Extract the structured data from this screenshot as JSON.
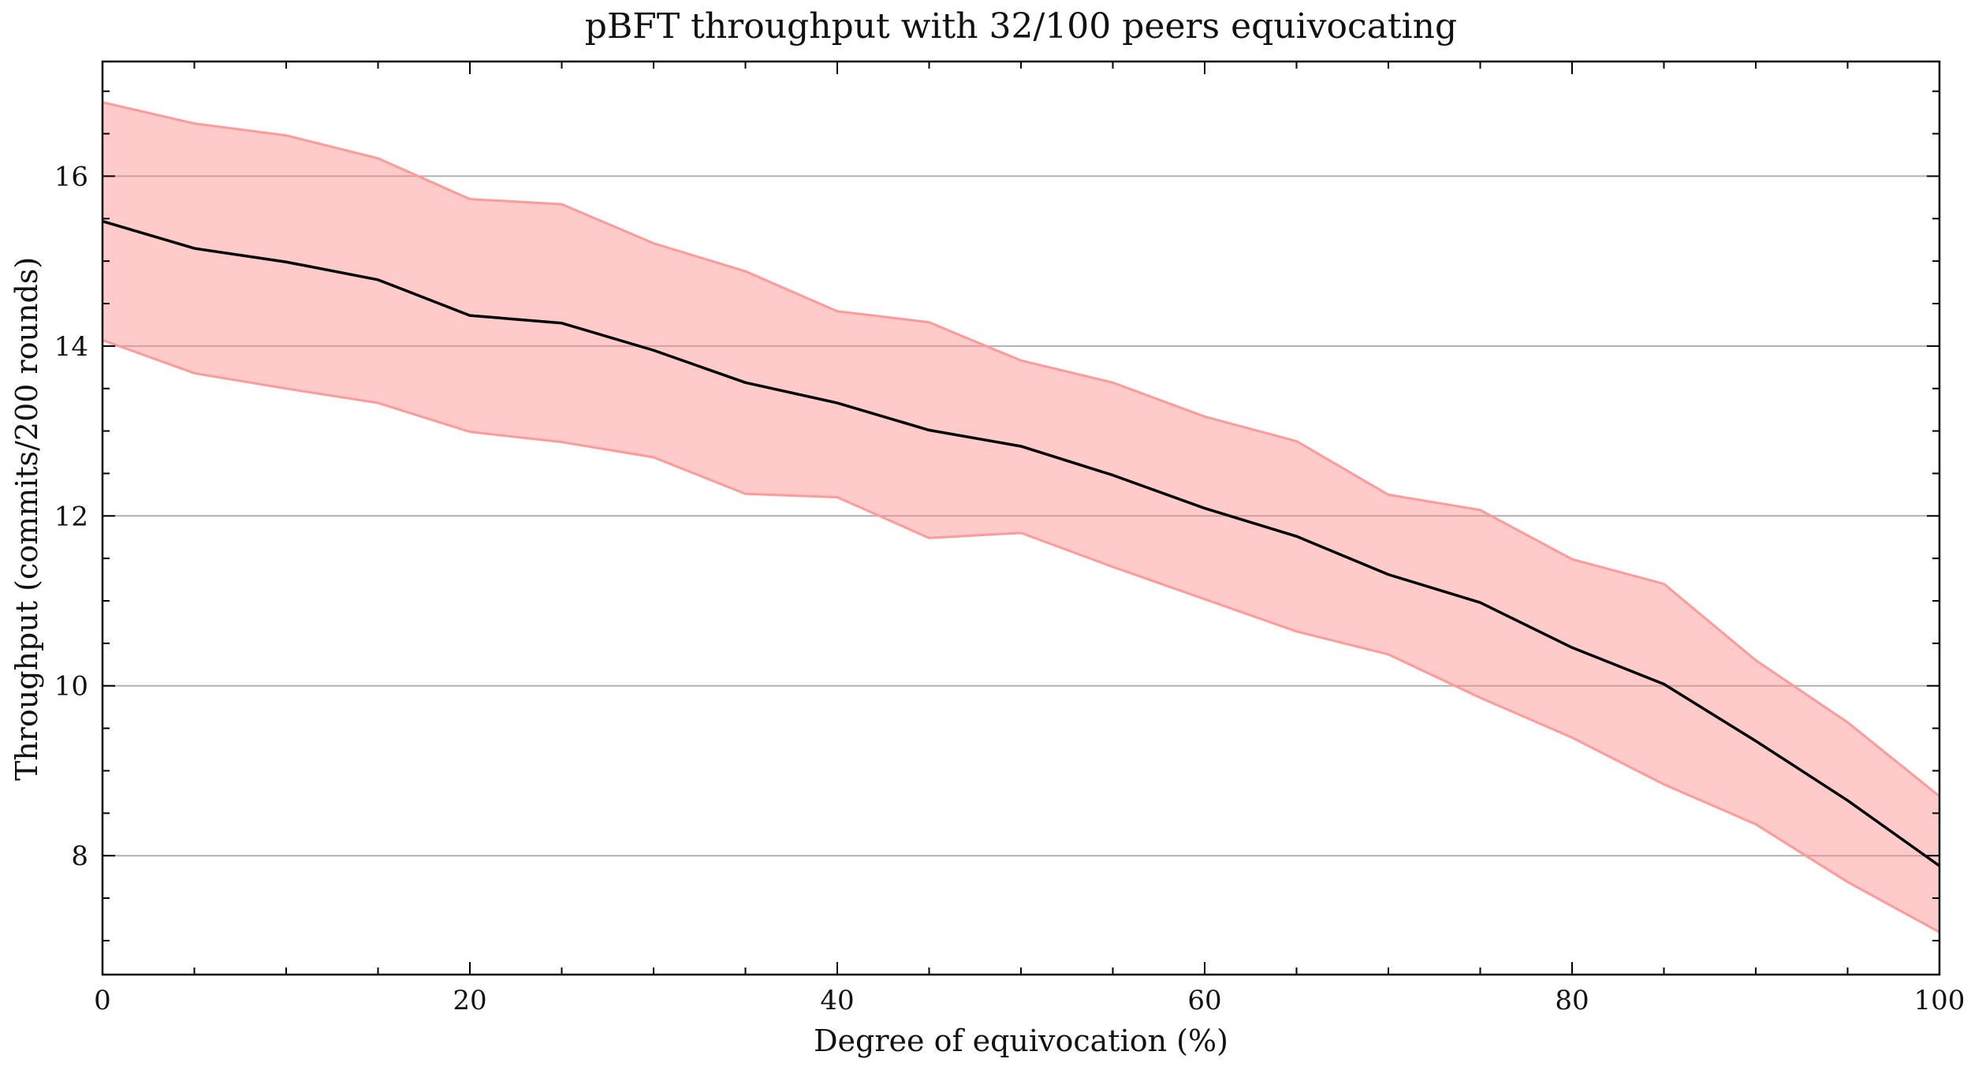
{
  "chart_data": {
    "type": "line",
    "title": "pBFT throughput with 32/100 peers equivocating",
    "xlabel": "Degree of equivocation (%)",
    "ylabel": "Throughput (commits/200 rounds)",
    "xlim": [
      0,
      100
    ],
    "ylim": [
      6.6,
      17.35
    ],
    "xticks": [
      0,
      20,
      40,
      60,
      80,
      100
    ],
    "yticks": [
      8,
      10,
      12,
      14,
      16
    ],
    "x_minor_step": 5,
    "y_minor_step": 0.5,
    "grid": "horizontal-major",
    "x": [
      0,
      5,
      10,
      15,
      20,
      25,
      30,
      35,
      40,
      45,
      50,
      55,
      60,
      65,
      70,
      75,
      80,
      85,
      90,
      95,
      100
    ],
    "series": [
      {
        "values": [
          15.47,
          15.15,
          14.99,
          14.78,
          14.36,
          14.27,
          13.95,
          13.57,
          13.33,
          13.01,
          12.82,
          12.48,
          12.09,
          11.76,
          11.31,
          10.98,
          10.45,
          10.02,
          9.35,
          8.65,
          7.88
        ],
        "lower": [
          14.07,
          13.68,
          13.5,
          13.33,
          12.99,
          12.87,
          12.69,
          12.26,
          12.22,
          11.74,
          11.8,
          11.4,
          11.02,
          10.64,
          10.37,
          9.86,
          9.39,
          8.84,
          8.37,
          7.69,
          7.1
        ],
        "upper": [
          16.87,
          16.62,
          16.48,
          16.21,
          15.73,
          15.67,
          15.21,
          14.88,
          14.41,
          14.28,
          13.83,
          13.57,
          13.17,
          12.88,
          12.25,
          12.07,
          11.49,
          11.2,
          10.3,
          9.57,
          8.7
        ],
        "color": "#000000",
        "band_color": "#ff8a8a",
        "band_edge_color": "#ff9a9a"
      }
    ]
  }
}
